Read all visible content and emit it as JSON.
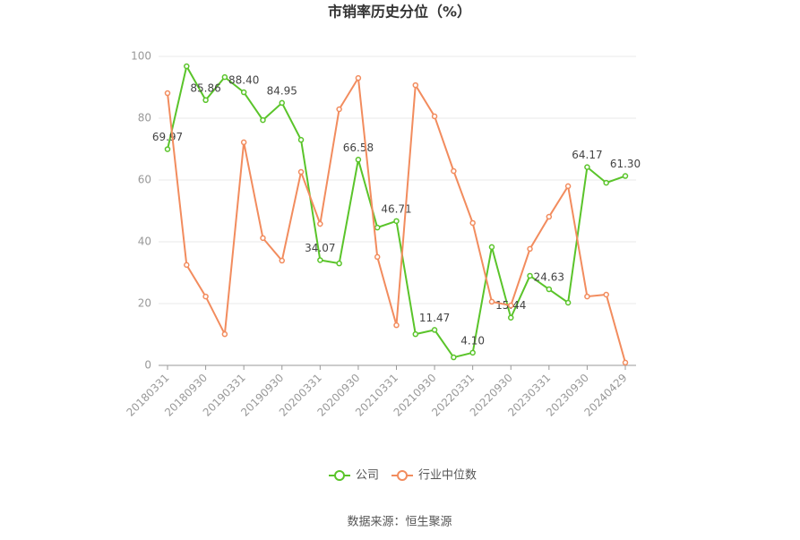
{
  "chart_data": {
    "type": "line",
    "title": "市销率历史分位（%）",
    "categories": [
      "20180331",
      null,
      "20180930",
      null,
      "20190331",
      null,
      "20190930",
      null,
      "20200331",
      null,
      "20200930",
      null,
      "20210331",
      null,
      "20210930",
      null,
      "20220331",
      null,
      "20220930",
      null,
      "20230331",
      null,
      "20230930",
      null,
      "20240429"
    ],
    "series": [
      {
        "name": "公司",
        "color": "#5ac42a",
        "values": [
          69.97,
          96.8,
          85.86,
          93.3,
          88.4,
          79.4,
          84.95,
          73.0,
          34.07,
          33.0,
          66.58,
          44.6,
          46.71,
          10.1,
          11.47,
          2.6,
          4.1,
          38.3,
          15.44,
          29.0,
          24.63,
          20.3,
          64.17,
          59.1,
          61.3
        ],
        "value_labels": [
          "69.97",
          null,
          "85.86",
          null,
          "88.40",
          null,
          "84.95",
          null,
          "34.07",
          null,
          "66.58",
          null,
          "46.71",
          null,
          "11.47",
          null,
          "4.10",
          null,
          "15.44",
          null,
          "24.63",
          null,
          "64.17",
          null,
          "61.30"
        ]
      },
      {
        "name": "行业中位数",
        "color": "#f28c5e",
        "values": [
          88.1,
          32.5,
          22.3,
          10.1,
          72.2,
          41.2,
          33.9,
          62.6,
          45.8,
          82.9,
          93.0,
          35.1,
          13.0,
          90.7,
          80.6,
          62.9,
          46.1,
          20.6,
          19.4,
          37.7,
          48.1,
          58.0,
          22.3,
          22.9,
          0.9
        ]
      }
    ],
    "ylim": [
      0,
      100
    ],
    "yticks": [
      0,
      20,
      40,
      60,
      80,
      100
    ],
    "grid": true,
    "source": "数据来源：恒生聚源"
  }
}
